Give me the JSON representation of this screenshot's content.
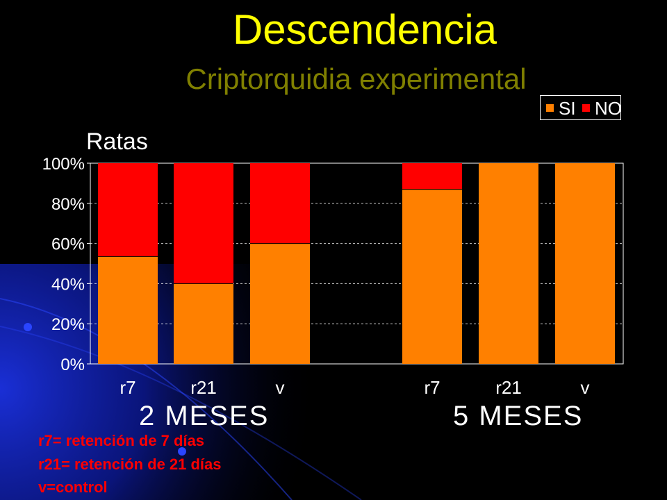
{
  "title": "Descendencia",
  "subtitle": "Criptorquidia experimental",
  "chart_label": "Ratas",
  "colors": {
    "title": "#ffff00",
    "subtitle": "#808000",
    "si": "#ff8000",
    "no": "#ff0000",
    "notes": "#ff0000",
    "background": "#000000",
    "accent_blue": "#1a2fd6"
  },
  "legend": [
    {
      "label": "SI",
      "color": "#ff8000"
    },
    {
      "label": "NO",
      "color": "#ff0000"
    }
  ],
  "groups": [
    "2 MESES",
    "5 MESES"
  ],
  "notes": [
    "r7= retención de 7 días",
    "r21= retención de 21 días",
    "v=control"
  ],
  "chart_data": {
    "type": "bar",
    "stacked": true,
    "categories": [
      "r7",
      "r21",
      "v",
      "r7",
      "r21",
      "v"
    ],
    "series": [
      {
        "name": "SI",
        "values": [
          53.5,
          40,
          60,
          87,
          100,
          100
        ]
      },
      {
        "name": "NO",
        "values": [
          46.5,
          60,
          40,
          13,
          0,
          0
        ]
      }
    ],
    "yticks": [
      "0%",
      "20%",
      "40%",
      "60%",
      "80%",
      "100%"
    ],
    "ylim": [
      0,
      100
    ],
    "grid": "dashed horizontal",
    "legend_position": "top-right"
  }
}
